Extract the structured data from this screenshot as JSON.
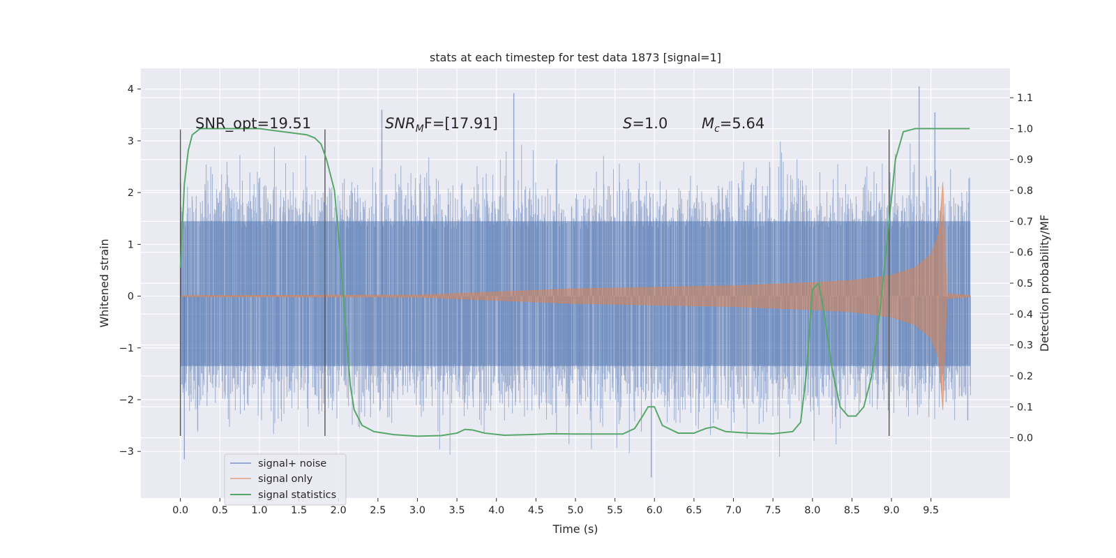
{
  "chart_data": {
    "type": "line",
    "title": "stats at each timestep for test data 1873 [signal=1]",
    "xlabel": "Time (s)",
    "ylabel": "Whitened strain",
    "y2label": "Detection probability/MF",
    "xlim": [
      -0.5,
      10.5
    ],
    "ylim": [
      -3.9,
      4.4
    ],
    "y2lim": [
      -0.195,
      1.195
    ],
    "x_ticks": [
      "0.0",
      "0.5",
      "1.0",
      "1.5",
      "2.0",
      "2.5",
      "3.0",
      "3.5",
      "4.0",
      "4.5",
      "5.0",
      "5.5",
      "6.0",
      "6.5",
      "7.0",
      "7.5",
      "8.0",
      "8.5",
      "9.0",
      "9.5"
    ],
    "y_ticks": [
      "4",
      "3",
      "2",
      "1",
      "0",
      "−1",
      "−2",
      "−3"
    ],
    "y2_ticks": [
      "1.1",
      "1.0",
      "0.9",
      "0.8",
      "0.7",
      "0.6",
      "0.5",
      "0.4",
      "0.3",
      "0.2",
      "0.1",
      "0.0"
    ],
    "grid": true,
    "legend_position": "lower-left",
    "annotations": {
      "snr_opt": "SNR_opt=19.51",
      "snr_mf_base": "SNR",
      "snr_mf_sub": "M",
      "snr_mf_rest": "F=[17.91]",
      "s_base": "S",
      "s_rest": "=1.0",
      "mc_base": "M",
      "mc_sub": "c",
      "mc_rest": "=5.64"
    },
    "vlines_x": [
      0.0,
      1.83,
      8.97
    ],
    "vlines_range": [
      -2.7,
      3.22
    ],
    "series": [
      {
        "name": "signal+ noise",
        "color": "#4c72b0",
        "x_range": [
          0.0,
          10.0
        ],
        "peak_highlights": [
          {
            "x": 4.22,
            "y": 3.92
          },
          {
            "x": 2.55,
            "y": 3.6
          },
          {
            "x": 9.35,
            "y": 4.05
          },
          {
            "x": 9.55,
            "y": 3.55
          },
          {
            "x": 5.96,
            "y": -3.5
          },
          {
            "x": 0.05,
            "y": -3.15
          }
        ]
      },
      {
        "name": "signal only",
        "color": "#dd8452",
        "envelope_x": [
          0.0,
          3.0,
          4.0,
          5.0,
          6.0,
          7.0,
          8.0,
          8.5,
          9.0,
          9.3,
          9.5,
          9.6,
          9.65,
          9.7,
          10.0
        ],
        "envelope_y": [
          0.01,
          0.02,
          0.08,
          0.14,
          0.17,
          0.2,
          0.26,
          0.3,
          0.4,
          0.55,
          0.8,
          1.2,
          2.2,
          0.05,
          0.01
        ]
      },
      {
        "name": "signal statistics",
        "color": "#55a868",
        "x": [
          0.0,
          0.05,
          0.1,
          0.15,
          0.25,
          0.4,
          0.6,
          1.0,
          1.3,
          1.6,
          1.7,
          1.78,
          1.85,
          1.95,
          2.02,
          2.08,
          2.15,
          2.2,
          2.3,
          2.45,
          2.7,
          3.0,
          3.3,
          3.5,
          3.6,
          3.7,
          3.85,
          4.1,
          4.4,
          4.7,
          5.0,
          5.3,
          5.6,
          5.75,
          5.85,
          5.92,
          6.0,
          6.1,
          6.3,
          6.5,
          6.65,
          6.75,
          6.9,
          7.2,
          7.5,
          7.75,
          7.85,
          7.92,
          8.0,
          8.08,
          8.15,
          8.25,
          8.35,
          8.45,
          8.55,
          8.65,
          8.75,
          8.85,
          8.97,
          9.05,
          9.15,
          9.3,
          9.6,
          9.99
        ],
        "y": [
          0.55,
          0.82,
          0.93,
          0.98,
          1.0,
          1.0,
          1.0,
          1.0,
          0.99,
          0.98,
          0.97,
          0.95,
          0.9,
          0.8,
          0.6,
          0.4,
          0.17,
          0.09,
          0.04,
          0.02,
          0.01,
          0.005,
          0.007,
          0.015,
          0.027,
          0.025,
          0.015,
          0.008,
          0.01,
          0.013,
          0.012,
          0.012,
          0.012,
          0.03,
          0.07,
          0.1,
          0.1,
          0.04,
          0.015,
          0.015,
          0.03,
          0.035,
          0.02,
          0.015,
          0.013,
          0.02,
          0.05,
          0.2,
          0.48,
          0.5,
          0.4,
          0.22,
          0.1,
          0.07,
          0.07,
          0.1,
          0.2,
          0.4,
          0.7,
          0.9,
          0.99,
          1.0,
          1.0,
          1.0
        ]
      }
    ]
  }
}
